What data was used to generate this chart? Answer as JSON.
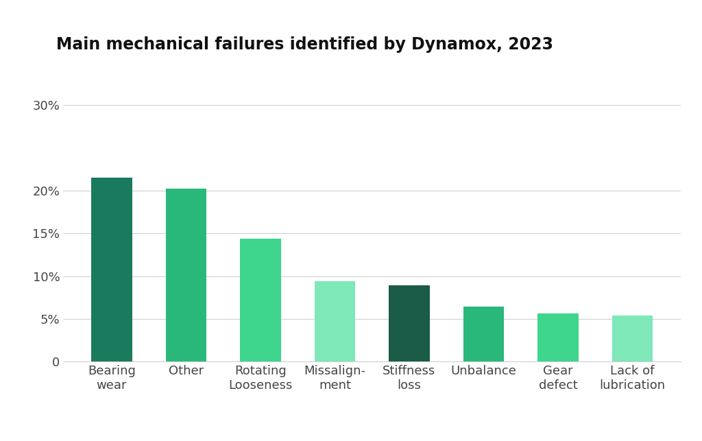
{
  "title": "Main mechanical failures identified by Dynamox, 2023",
  "categories": [
    "Bearing\nwear",
    "Other",
    "Rotating\nLooseness",
    "Missalign-\nment",
    "Stiffness\nloss",
    "Unbalance",
    "Gear\ndefect",
    "Lack of\nlubrication"
  ],
  "values": [
    21.5,
    20.2,
    14.4,
    9.4,
    8.9,
    6.4,
    5.6,
    5.4
  ],
  "bar_colors": [
    "#1a7a5e",
    "#2ab87a",
    "#3dd68c",
    "#7ee8b8",
    "#1a5c47",
    "#2ab87a",
    "#3dd68c",
    "#7ee8b8"
  ],
  "background_color": "#ffffff",
  "title_fontsize": 17,
  "tick_fontsize": 13,
  "ylim": [
    0,
    33
  ],
  "yticks": [
    0,
    5,
    10,
    15,
    20,
    30
  ],
  "ytick_labels": [
    "0",
    "5%",
    "10%",
    "15%",
    "20%",
    "30%"
  ],
  "grid_color": "#d0d0d0",
  "bar_width": 0.55
}
